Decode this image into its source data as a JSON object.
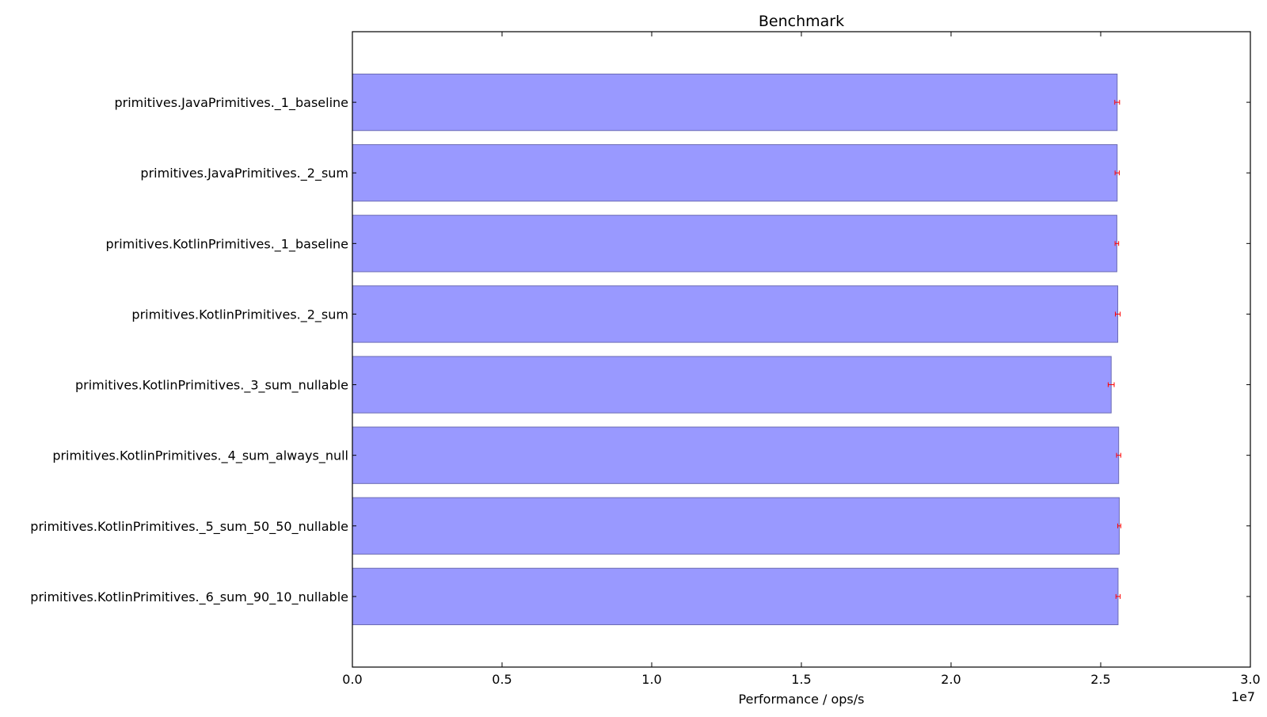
{
  "chart_data": {
    "type": "bar",
    "orientation": "horizontal",
    "title": "Benchmark",
    "xlabel": "Performance / ops/s",
    "ylabel": "",
    "x_scale_offset": "1e7",
    "xlim": [
      0,
      30000000
    ],
    "xticks": [
      0,
      5000000,
      10000000,
      15000000,
      20000000,
      25000000,
      30000000
    ],
    "xtick_labels": [
      "0.0",
      "0.5",
      "1.0",
      "1.5",
      "2.0",
      "2.5",
      "3.0"
    ],
    "grid": false,
    "legend": "none",
    "colors": {
      "bar_fill": "#9999ff",
      "bar_edge": "#6b6bb3",
      "error_bar": "#ff0000",
      "axis": "#000000"
    },
    "categories": [
      "primitives.JavaPrimitives._1_baseline",
      "primitives.JavaPrimitives._2_sum",
      "primitives.KotlinPrimitives._1_baseline",
      "primitives.KotlinPrimitives._2_sum",
      "primitives.KotlinPrimitives._3_sum_nullable",
      "primitives.KotlinPrimitives._4_sum_always_null",
      "primitives.KotlinPrimitives._5_sum_50_50_nullable",
      "primitives.KotlinPrimitives._6_sum_90_10_nullable"
    ],
    "values": [
      25550000,
      25550000,
      25540000,
      25570000,
      25350000,
      25600000,
      25620000,
      25580000
    ],
    "errors": [
      80000,
      70000,
      60000,
      80000,
      100000,
      70000,
      50000,
      70000
    ]
  }
}
